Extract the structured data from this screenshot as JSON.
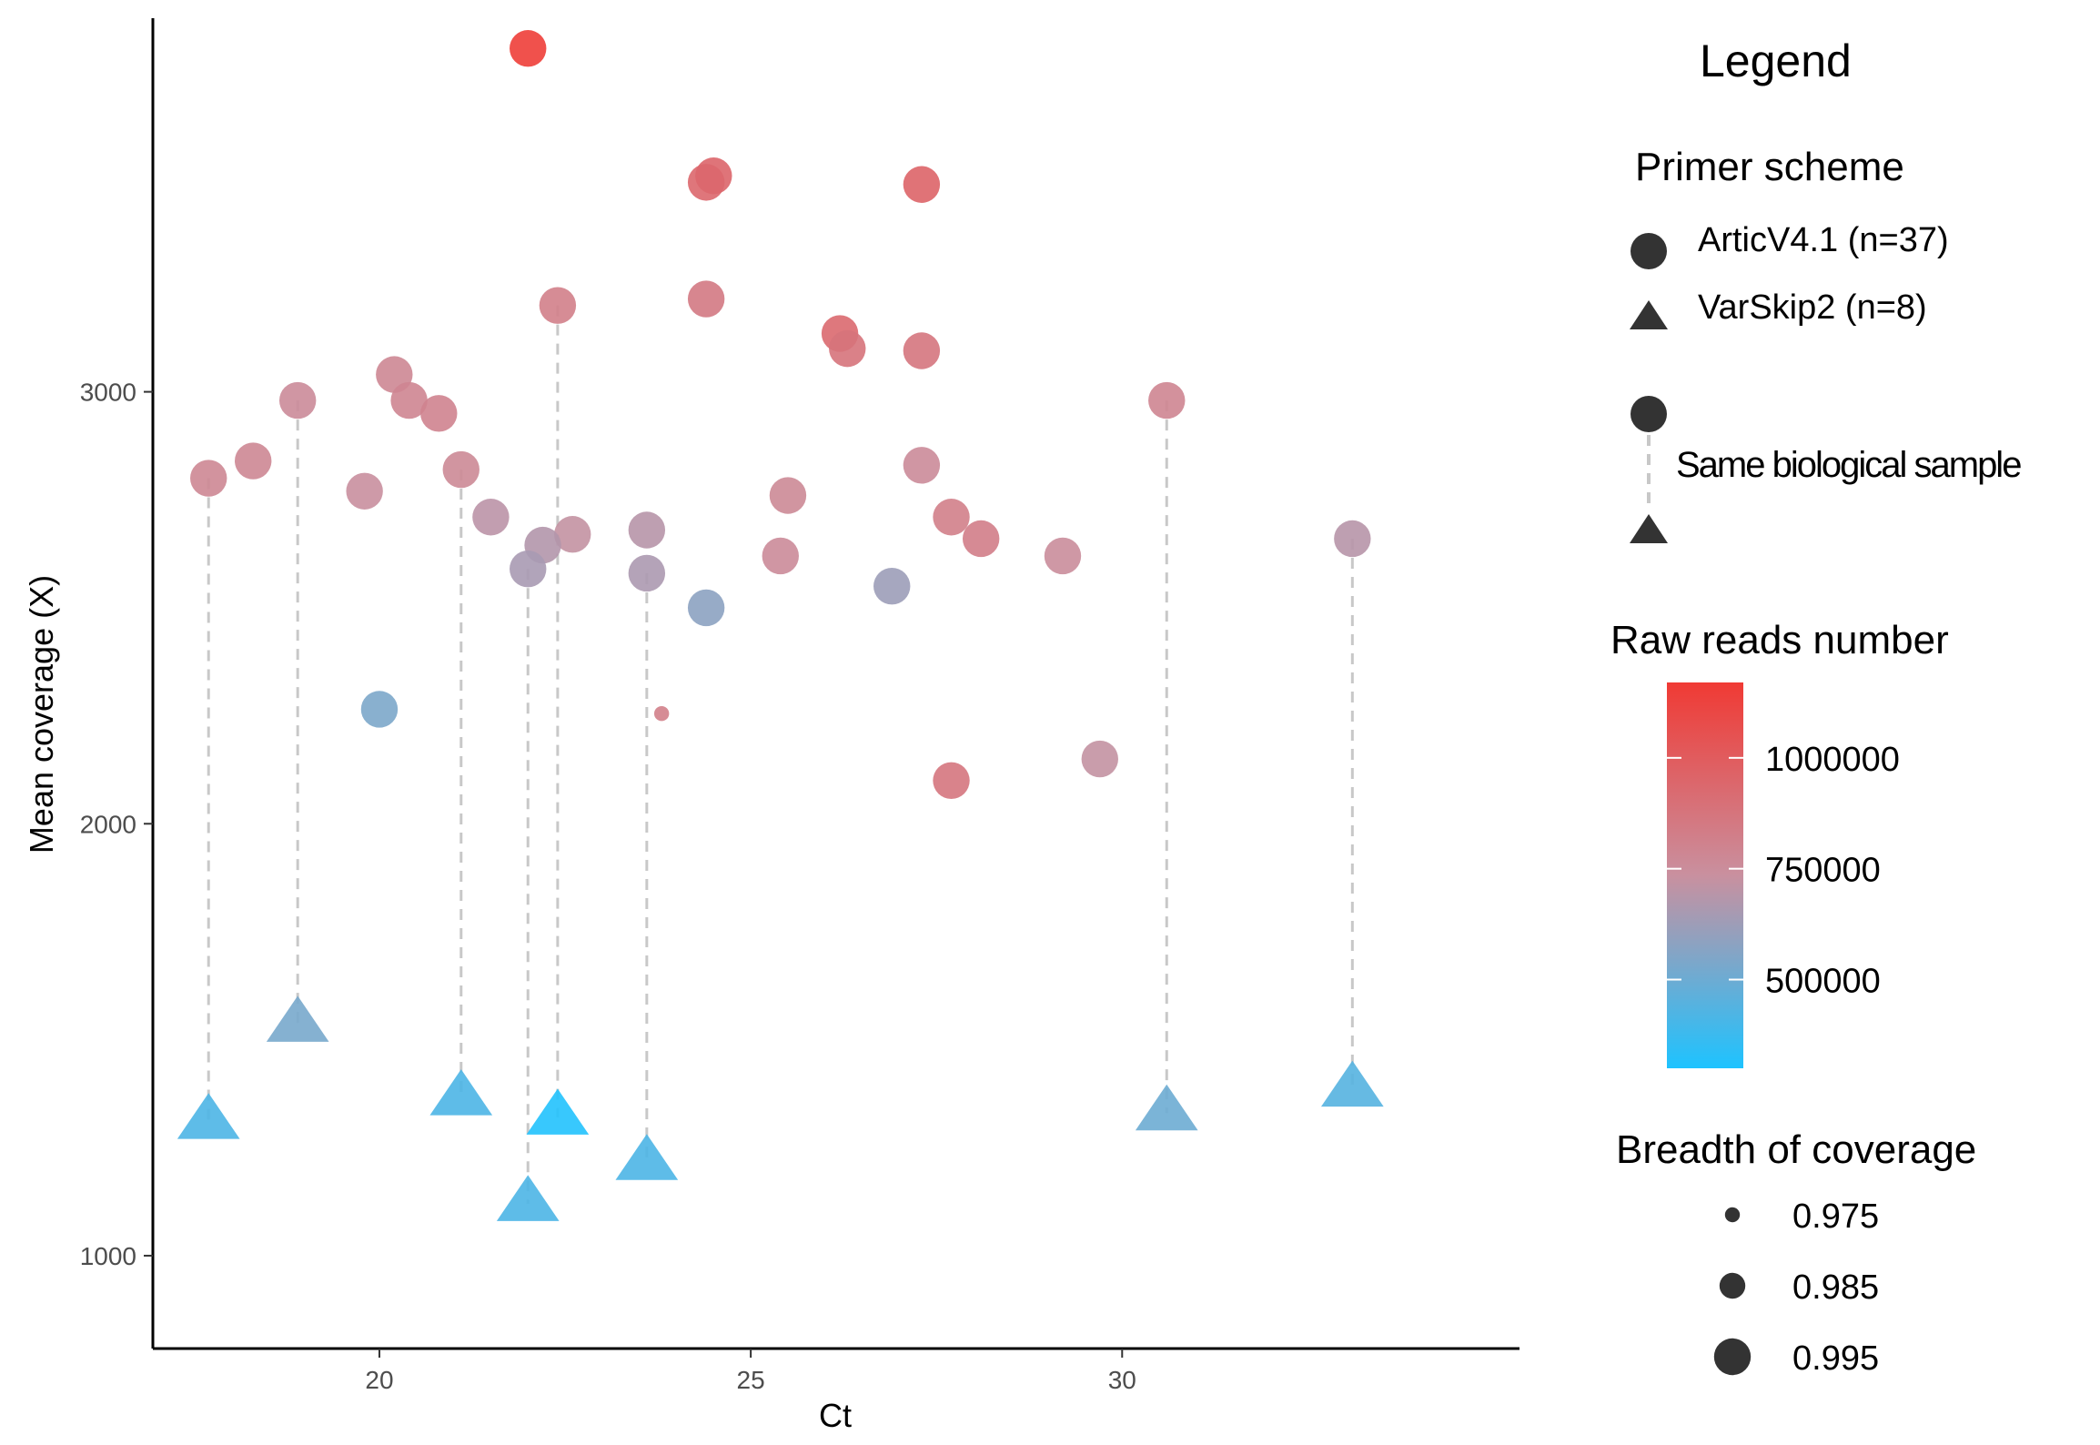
{
  "chart_data": {
    "type": "scatter",
    "xlabel": "Ct",
    "ylabel": "Mean coverage (X)",
    "xlim": [
      16.95,
      35.35
    ],
    "ylim": [
      785,
      3865
    ],
    "x_ticks": [
      20,
      25,
      30
    ],
    "y_ticks": [
      1000,
      2000,
      3000
    ],
    "grid": false,
    "colors": {
      "high": "#f03a34",
      "mid": "#c9909f",
      "low": "#1ec3ff",
      "line": "#c8c8c8",
      "axis": "#000000"
    },
    "color_domain": [
      300000,
      1170000
    ],
    "size_domain": [
      0.973,
      0.998
    ],
    "primers": [
      {
        "name": "ArticV4.1",
        "shape": "circle",
        "n": 37
      },
      {
        "name": "VarSkip2",
        "shape": "triangle",
        "n": 8
      }
    ],
    "points": [
      {
        "x": 22.0,
        "y": 3795,
        "reads": 1150000,
        "breadth": 0.995,
        "primer": "ArticV4.1"
      },
      {
        "x": 24.5,
        "y": 3500,
        "reads": 950000,
        "breadth": 0.995,
        "primer": "ArticV4.1"
      },
      {
        "x": 24.4,
        "y": 3485,
        "reads": 940000,
        "breadth": 0.995,
        "primer": "ArticV4.1"
      },
      {
        "x": 27.3,
        "y": 3480,
        "reads": 960000,
        "breadth": 0.995,
        "primer": "ArticV4.1"
      },
      {
        "x": 24.4,
        "y": 3215,
        "reads": 850000,
        "breadth": 0.995,
        "primer": "ArticV4.1"
      },
      {
        "x": 26.2,
        "y": 3135,
        "reads": 930000,
        "breadth": 0.995,
        "primer": "ArticV4.1"
      },
      {
        "x": 26.3,
        "y": 3100,
        "reads": 880000,
        "breadth": 0.995,
        "primer": "ArticV4.1"
      },
      {
        "x": 27.3,
        "y": 3095,
        "reads": 870000,
        "breadth": 0.995,
        "primer": "ArticV4.1"
      },
      {
        "x": 22.4,
        "y": 3200,
        "reads": 820000,
        "breadth": 0.995,
        "primer": "ArticV4.1"
      },
      {
        "x": 20.2,
        "y": 3040,
        "reads": 780000,
        "breadth": 0.995,
        "primer": "ArticV4.1"
      },
      {
        "x": 20.4,
        "y": 2980,
        "reads": 790000,
        "breadth": 0.995,
        "primer": "ArticV4.1"
      },
      {
        "x": 20.8,
        "y": 2950,
        "reads": 800000,
        "breadth": 0.995,
        "primer": "ArticV4.1"
      },
      {
        "x": 18.9,
        "y": 2980,
        "reads": 760000,
        "breadth": 0.995,
        "primer": "ArticV4.1"
      },
      {
        "x": 30.6,
        "y": 2980,
        "reads": 790000,
        "breadth": 0.995,
        "primer": "ArticV4.1"
      },
      {
        "x": 18.3,
        "y": 2840,
        "reads": 780000,
        "breadth": 0.995,
        "primer": "ArticV4.1"
      },
      {
        "x": 17.7,
        "y": 2800,
        "reads": 780000,
        "breadth": 0.995,
        "primer": "ArticV4.1"
      },
      {
        "x": 21.1,
        "y": 2820,
        "reads": 770000,
        "breadth": 0.995,
        "primer": "ArticV4.1"
      },
      {
        "x": 27.3,
        "y": 2830,
        "reads": 760000,
        "breadth": 0.995,
        "primer": "ArticV4.1"
      },
      {
        "x": 19.8,
        "y": 2770,
        "reads": 740000,
        "breadth": 0.995,
        "primer": "ArticV4.1"
      },
      {
        "x": 25.5,
        "y": 2760,
        "reads": 770000,
        "breadth": 0.995,
        "primer": "ArticV4.1"
      },
      {
        "x": 21.5,
        "y": 2710,
        "reads": 700000,
        "breadth": 0.995,
        "primer": "ArticV4.1"
      },
      {
        "x": 27.7,
        "y": 2710,
        "reads": 820000,
        "breadth": 0.995,
        "primer": "ArticV4.1"
      },
      {
        "x": 22.6,
        "y": 2670,
        "reads": 720000,
        "breadth": 0.995,
        "primer": "ArticV4.1"
      },
      {
        "x": 28.1,
        "y": 2660,
        "reads": 830000,
        "breadth": 0.995,
        "primer": "ArticV4.1"
      },
      {
        "x": 22.2,
        "y": 2645,
        "reads": 680000,
        "breadth": 0.995,
        "primer": "ArticV4.1"
      },
      {
        "x": 23.6,
        "y": 2680,
        "reads": 690000,
        "breadth": 0.995,
        "primer": "ArticV4.1"
      },
      {
        "x": 25.4,
        "y": 2620,
        "reads": 760000,
        "breadth": 0.995,
        "primer": "ArticV4.1"
      },
      {
        "x": 29.2,
        "y": 2620,
        "reads": 750000,
        "breadth": 0.995,
        "primer": "ArticV4.1"
      },
      {
        "x": 33.1,
        "y": 2660,
        "reads": 690000,
        "breadth": 0.995,
        "primer": "ArticV4.1"
      },
      {
        "x": 22.0,
        "y": 2590,
        "reads": 650000,
        "breadth": 0.995,
        "primer": "ArticV4.1"
      },
      {
        "x": 23.6,
        "y": 2580,
        "reads": 660000,
        "breadth": 0.995,
        "primer": "ArticV4.1"
      },
      {
        "x": 26.9,
        "y": 2550,
        "reads": 620000,
        "breadth": 0.995,
        "primer": "ArticV4.1"
      },
      {
        "x": 24.4,
        "y": 2500,
        "reads": 580000,
        "breadth": 0.995,
        "primer": "ArticV4.1"
      },
      {
        "x": 20.0,
        "y": 2265,
        "reads": 540000,
        "breadth": 0.995,
        "primer": "ArticV4.1"
      },
      {
        "x": 23.8,
        "y": 2255,
        "reads": 820000,
        "breadth": 0.975,
        "primer": "ArticV4.1"
      },
      {
        "x": 29.7,
        "y": 2150,
        "reads": 720000,
        "breadth": 0.995,
        "primer": "ArticV4.1"
      },
      {
        "x": 27.7,
        "y": 2100,
        "reads": 870000,
        "breadth": 0.995,
        "primer": "ArticV4.1"
      },
      {
        "x": 18.9,
        "y": 1535,
        "reads": 530000,
        "breadth": 0.995,
        "primer": "VarSkip2"
      },
      {
        "x": 17.7,
        "y": 1310,
        "reads": 420000,
        "breadth": 0.995,
        "primer": "VarSkip2"
      },
      {
        "x": 21.1,
        "y": 1365,
        "reads": 420000,
        "breadth": 0.995,
        "primer": "VarSkip2"
      },
      {
        "x": 22.0,
        "y": 1120,
        "reads": 420000,
        "breadth": 0.995,
        "primer": "VarSkip2"
      },
      {
        "x": 22.4,
        "y": 1320,
        "reads": 310000,
        "breadth": 0.995,
        "primer": "VarSkip2"
      },
      {
        "x": 23.6,
        "y": 1215,
        "reads": 420000,
        "breadth": 0.995,
        "primer": "VarSkip2"
      },
      {
        "x": 30.6,
        "y": 1330,
        "reads": 500000,
        "breadth": 0.995,
        "primer": "VarSkip2"
      },
      {
        "x": 33.1,
        "y": 1385,
        "reads": 440000,
        "breadth": 0.995,
        "primer": "VarSkip2"
      }
    ],
    "pairs": [
      {
        "x": 17.7,
        "y_from": 2800,
        "y_to": 1310
      },
      {
        "x": 18.9,
        "y_from": 2980,
        "y_to": 1535
      },
      {
        "x": 21.1,
        "y_from": 2820,
        "y_to": 1365
      },
      {
        "x": 22.0,
        "y_from": 2590,
        "y_to": 1120
      },
      {
        "x": 22.4,
        "y_from": 3200,
        "y_to": 1320
      },
      {
        "x": 23.6,
        "y_from": 2580,
        "y_to": 1215
      },
      {
        "x": 30.6,
        "y_from": 2980,
        "y_to": 1330
      },
      {
        "x": 33.1,
        "y_from": 2660,
        "y_to": 1385
      }
    ],
    "legend": {
      "heading": "Legend",
      "primer_title": "Primer scheme",
      "primer_labels": [
        "ArticV4.1 (n=37)",
        "VarSkip2 (n=8)"
      ],
      "same_sample_label": "Same biological sample",
      "reads_title": "Raw reads number",
      "reads_ticks": [
        {
          "value": 1000000,
          "label": "1000000"
        },
        {
          "value": 750000,
          "label": "750000"
        },
        {
          "value": 500000,
          "label": "500000"
        }
      ],
      "breadth_title": "Breadth of coverage",
      "breadth_ticks": [
        {
          "value": 0.975,
          "label": "0.975"
        },
        {
          "value": 0.985,
          "label": "0.985"
        },
        {
          "value": 0.995,
          "label": "0.995"
        }
      ]
    }
  }
}
